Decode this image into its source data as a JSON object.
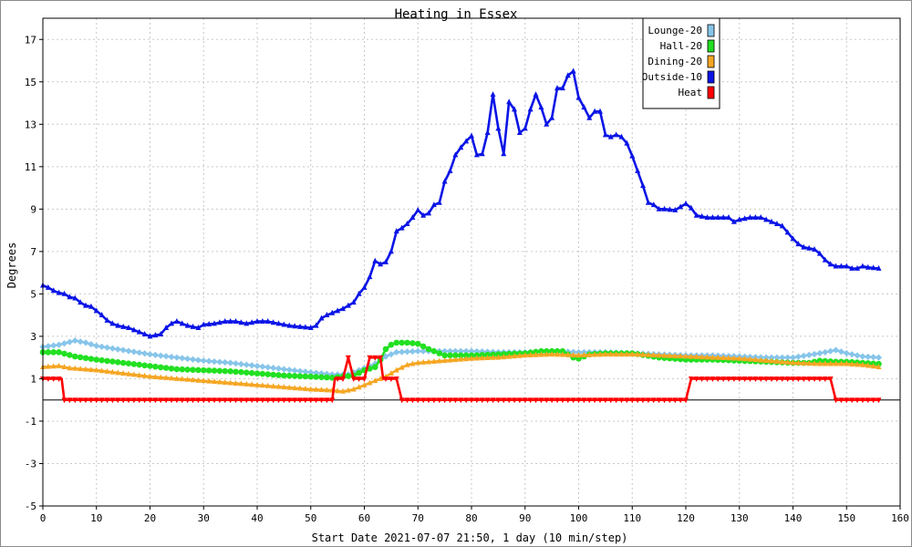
{
  "chart_data": {
    "type": "line",
    "title": "Heating in Essex",
    "xlabel": "Start Date 2021-07-07 21:50, 1 day (10 min/step)",
    "ylabel": "Degrees",
    "xlim": [
      0,
      160
    ],
    "ylim": [
      -5,
      18
    ],
    "xticks": [
      0,
      10,
      20,
      30,
      40,
      50,
      60,
      70,
      80,
      90,
      100,
      110,
      120,
      130,
      140,
      150,
      160
    ],
    "yticks": [
      -5,
      -3,
      -1,
      1,
      3,
      5,
      7,
      9,
      11,
      13,
      15,
      17
    ],
    "zero_line": 0,
    "grid": true,
    "legend_position": "top-right",
    "series": [
      {
        "name": "Lounge-20",
        "color": "#87c5ea",
        "marker": "diamond",
        "points": [
          [
            0,
            2.5
          ],
          [
            3,
            2.6
          ],
          [
            6,
            2.8
          ],
          [
            8,
            2.7
          ],
          [
            10,
            2.55
          ],
          [
            15,
            2.35
          ],
          [
            20,
            2.15
          ],
          [
            25,
            2.0
          ],
          [
            30,
            1.85
          ],
          [
            35,
            1.75
          ],
          [
            40,
            1.6
          ],
          [
            45,
            1.45
          ],
          [
            50,
            1.3
          ],
          [
            54,
            1.2
          ],
          [
            57,
            1.2
          ],
          [
            60,
            1.5
          ],
          [
            62,
            1.7
          ],
          [
            64,
            2.05
          ],
          [
            66,
            2.25
          ],
          [
            70,
            2.3
          ],
          [
            75,
            2.3
          ],
          [
            80,
            2.3
          ],
          [
            85,
            2.25
          ],
          [
            90,
            2.25
          ],
          [
            95,
            2.3
          ],
          [
            100,
            2.25
          ],
          [
            105,
            2.25
          ],
          [
            110,
            2.2
          ],
          [
            115,
            2.15
          ],
          [
            120,
            2.1
          ],
          [
            125,
            2.1
          ],
          [
            130,
            2.05
          ],
          [
            135,
            2.0
          ],
          [
            140,
            2.0
          ],
          [
            145,
            2.2
          ],
          [
            148,
            2.35
          ],
          [
            150,
            2.2
          ],
          [
            153,
            2.05
          ],
          [
            156,
            2.0
          ]
        ]
      },
      {
        "name": "Hall-20",
        "color": "#22e022",
        "marker": "circle",
        "points": [
          [
            0,
            2.25
          ],
          [
            3,
            2.25
          ],
          [
            6,
            2.05
          ],
          [
            10,
            1.9
          ],
          [
            15,
            1.75
          ],
          [
            20,
            1.6
          ],
          [
            25,
            1.45
          ],
          [
            30,
            1.4
          ],
          [
            35,
            1.35
          ],
          [
            40,
            1.25
          ],
          [
            45,
            1.15
          ],
          [
            50,
            1.1
          ],
          [
            54,
            1.05
          ],
          [
            56,
            1.1
          ],
          [
            58,
            1.15
          ],
          [
            60,
            1.4
          ],
          [
            62,
            1.55
          ],
          [
            63,
            1.9
          ],
          [
            64,
            2.4
          ],
          [
            65,
            2.6
          ],
          [
            66,
            2.7
          ],
          [
            68,
            2.7
          ],
          [
            70,
            2.65
          ],
          [
            72,
            2.4
          ],
          [
            75,
            2.1
          ],
          [
            80,
            2.1
          ],
          [
            85,
            2.15
          ],
          [
            90,
            2.2
          ],
          [
            93,
            2.3
          ],
          [
            97,
            2.3
          ],
          [
            99,
            2.0
          ],
          [
            100,
            1.95
          ],
          [
            102,
            2.15
          ],
          [
            105,
            2.2
          ],
          [
            110,
            2.2
          ],
          [
            115,
            2.0
          ],
          [
            120,
            1.9
          ],
          [
            125,
            1.9
          ],
          [
            130,
            1.85
          ],
          [
            135,
            1.8
          ],
          [
            140,
            1.75
          ],
          [
            143,
            1.75
          ],
          [
            145,
            1.85
          ],
          [
            148,
            1.8
          ],
          [
            150,
            1.8
          ],
          [
            153,
            1.75
          ],
          [
            156,
            1.7
          ]
        ]
      },
      {
        "name": "Dining-20",
        "color": "#f5a623",
        "marker": "triangle",
        "points": [
          [
            0,
            1.55
          ],
          [
            3,
            1.6
          ],
          [
            5,
            1.5
          ],
          [
            10,
            1.4
          ],
          [
            15,
            1.25
          ],
          [
            20,
            1.1
          ],
          [
            25,
            1.0
          ],
          [
            30,
            0.9
          ],
          [
            35,
            0.8
          ],
          [
            40,
            0.7
          ],
          [
            45,
            0.6
          ],
          [
            50,
            0.5
          ],
          [
            54,
            0.45
          ],
          [
            56,
            0.4
          ],
          [
            58,
            0.5
          ],
          [
            60,
            0.7
          ],
          [
            62,
            0.9
          ],
          [
            64,
            1.1
          ],
          [
            66,
            1.4
          ],
          [
            68,
            1.65
          ],
          [
            70,
            1.75
          ],
          [
            75,
            1.85
          ],
          [
            80,
            1.95
          ],
          [
            85,
            2.0
          ],
          [
            90,
            2.1
          ],
          [
            95,
            2.15
          ],
          [
            100,
            2.1
          ],
          [
            105,
            2.15
          ],
          [
            110,
            2.15
          ],
          [
            115,
            2.1
          ],
          [
            120,
            2.05
          ],
          [
            125,
            2.0
          ],
          [
            130,
            1.95
          ],
          [
            135,
            1.85
          ],
          [
            140,
            1.75
          ],
          [
            145,
            1.7
          ],
          [
            150,
            1.7
          ],
          [
            153,
            1.65
          ],
          [
            156,
            1.55
          ]
        ]
      },
      {
        "name": "Outside-10",
        "color": "#0a14e6",
        "marker": "triangle",
        "points": [
          [
            0,
            5.4
          ],
          [
            1,
            5.3
          ],
          [
            2,
            5.15
          ],
          [
            3,
            5.05
          ],
          [
            4,
            5.0
          ],
          [
            5,
            4.85
          ],
          [
            6,
            4.8
          ],
          [
            7,
            4.6
          ],
          [
            8,
            4.45
          ],
          [
            9,
            4.4
          ],
          [
            10,
            4.2
          ],
          [
            11,
            4.0
          ],
          [
            12,
            3.75
          ],
          [
            13,
            3.6
          ],
          [
            14,
            3.5
          ],
          [
            15,
            3.45
          ],
          [
            16,
            3.4
          ],
          [
            17,
            3.3
          ],
          [
            18,
            3.2
          ],
          [
            19,
            3.1
          ],
          [
            20,
            3.0
          ],
          [
            21,
            3.05
          ],
          [
            22,
            3.1
          ],
          [
            23,
            3.4
          ],
          [
            24,
            3.6
          ],
          [
            25,
            3.7
          ],
          [
            26,
            3.6
          ],
          [
            27,
            3.5
          ],
          [
            28,
            3.45
          ],
          [
            29,
            3.4
          ],
          [
            30,
            3.55
          ],
          [
            32,
            3.6
          ],
          [
            34,
            3.7
          ],
          [
            36,
            3.7
          ],
          [
            38,
            3.6
          ],
          [
            40,
            3.7
          ],
          [
            42,
            3.7
          ],
          [
            44,
            3.6
          ],
          [
            46,
            3.5
          ],
          [
            48,
            3.45
          ],
          [
            50,
            3.4
          ],
          [
            51,
            3.5
          ],
          [
            52,
            3.85
          ],
          [
            53,
            4.0
          ],
          [
            54,
            4.1
          ],
          [
            55,
            4.2
          ],
          [
            56,
            4.3
          ],
          [
            57,
            4.45
          ],
          [
            58,
            4.6
          ],
          [
            59,
            5.0
          ],
          [
            60,
            5.3
          ],
          [
            61,
            5.8
          ],
          [
            62,
            6.55
          ],
          [
            63,
            6.4
          ],
          [
            64,
            6.5
          ],
          [
            65,
            7.0
          ],
          [
            66,
            7.95
          ],
          [
            67,
            8.1
          ],
          [
            68,
            8.3
          ],
          [
            69,
            8.6
          ],
          [
            70,
            8.95
          ],
          [
            71,
            8.7
          ],
          [
            72,
            8.8
          ],
          [
            73,
            9.2
          ],
          [
            74,
            9.3
          ],
          [
            75,
            10.3
          ],
          [
            76,
            10.8
          ],
          [
            77,
            11.55
          ],
          [
            78,
            11.9
          ],
          [
            79,
            12.2
          ],
          [
            80,
            12.45
          ],
          [
            81,
            11.55
          ],
          [
            82,
            11.6
          ],
          [
            83,
            12.6
          ],
          [
            84,
            14.4
          ],
          [
            85,
            12.8
          ],
          [
            86,
            11.6
          ],
          [
            87,
            14.05
          ],
          [
            88,
            13.7
          ],
          [
            89,
            12.6
          ],
          [
            90,
            12.8
          ],
          [
            91,
            13.7
          ],
          [
            92,
            14.4
          ],
          [
            93,
            13.8
          ],
          [
            94,
            13.0
          ],
          [
            95,
            13.3
          ],
          [
            96,
            14.7
          ],
          [
            97,
            14.7
          ],
          [
            98,
            15.3
          ],
          [
            99,
            15.5
          ],
          [
            100,
            14.25
          ],
          [
            101,
            13.8
          ],
          [
            102,
            13.3
          ],
          [
            103,
            13.6
          ],
          [
            104,
            13.6
          ],
          [
            105,
            12.5
          ],
          [
            106,
            12.4
          ],
          [
            107,
            12.5
          ],
          [
            108,
            12.4
          ],
          [
            109,
            12.1
          ],
          [
            110,
            11.5
          ],
          [
            111,
            10.8
          ],
          [
            112,
            10.1
          ],
          [
            113,
            9.3
          ],
          [
            114,
            9.2
          ],
          [
            115,
            9.0
          ],
          [
            116,
            9.0
          ],
          [
            118,
            8.95
          ],
          [
            119,
            9.1
          ],
          [
            120,
            9.25
          ],
          [
            121,
            9.05
          ],
          [
            122,
            8.7
          ],
          [
            124,
            8.6
          ],
          [
            126,
            8.6
          ],
          [
            128,
            8.6
          ],
          [
            129,
            8.4
          ],
          [
            130,
            8.5
          ],
          [
            132,
            8.6
          ],
          [
            134,
            8.6
          ],
          [
            136,
            8.4
          ],
          [
            138,
            8.2
          ],
          [
            139,
            7.9
          ],
          [
            140,
            7.6
          ],
          [
            141,
            7.35
          ],
          [
            142,
            7.2
          ],
          [
            144,
            7.1
          ],
          [
            145,
            6.9
          ],
          [
            146,
            6.6
          ],
          [
            147,
            6.4
          ],
          [
            148,
            6.3
          ],
          [
            150,
            6.3
          ],
          [
            151,
            6.2
          ],
          [
            152,
            6.2
          ],
          [
            153,
            6.3
          ],
          [
            154,
            6.25
          ],
          [
            156,
            6.2
          ]
        ]
      },
      {
        "name": "Heat",
        "color": "#ff0000",
        "marker": "triangle-down",
        "points": [
          [
            0,
            1
          ],
          [
            3.5,
            1
          ],
          [
            4,
            0
          ],
          [
            54,
            0
          ],
          [
            54.5,
            1
          ],
          [
            56,
            1
          ],
          [
            57,
            2
          ],
          [
            58,
            1
          ],
          [
            60,
            1
          ],
          [
            61,
            2
          ],
          [
            63,
            2
          ],
          [
            63.5,
            1
          ],
          [
            66,
            1
          ],
          [
            67,
            0
          ],
          [
            120,
            0
          ],
          [
            121,
            1
          ],
          [
            147,
            1
          ],
          [
            148,
            0
          ],
          [
            156,
            0
          ]
        ]
      }
    ]
  }
}
